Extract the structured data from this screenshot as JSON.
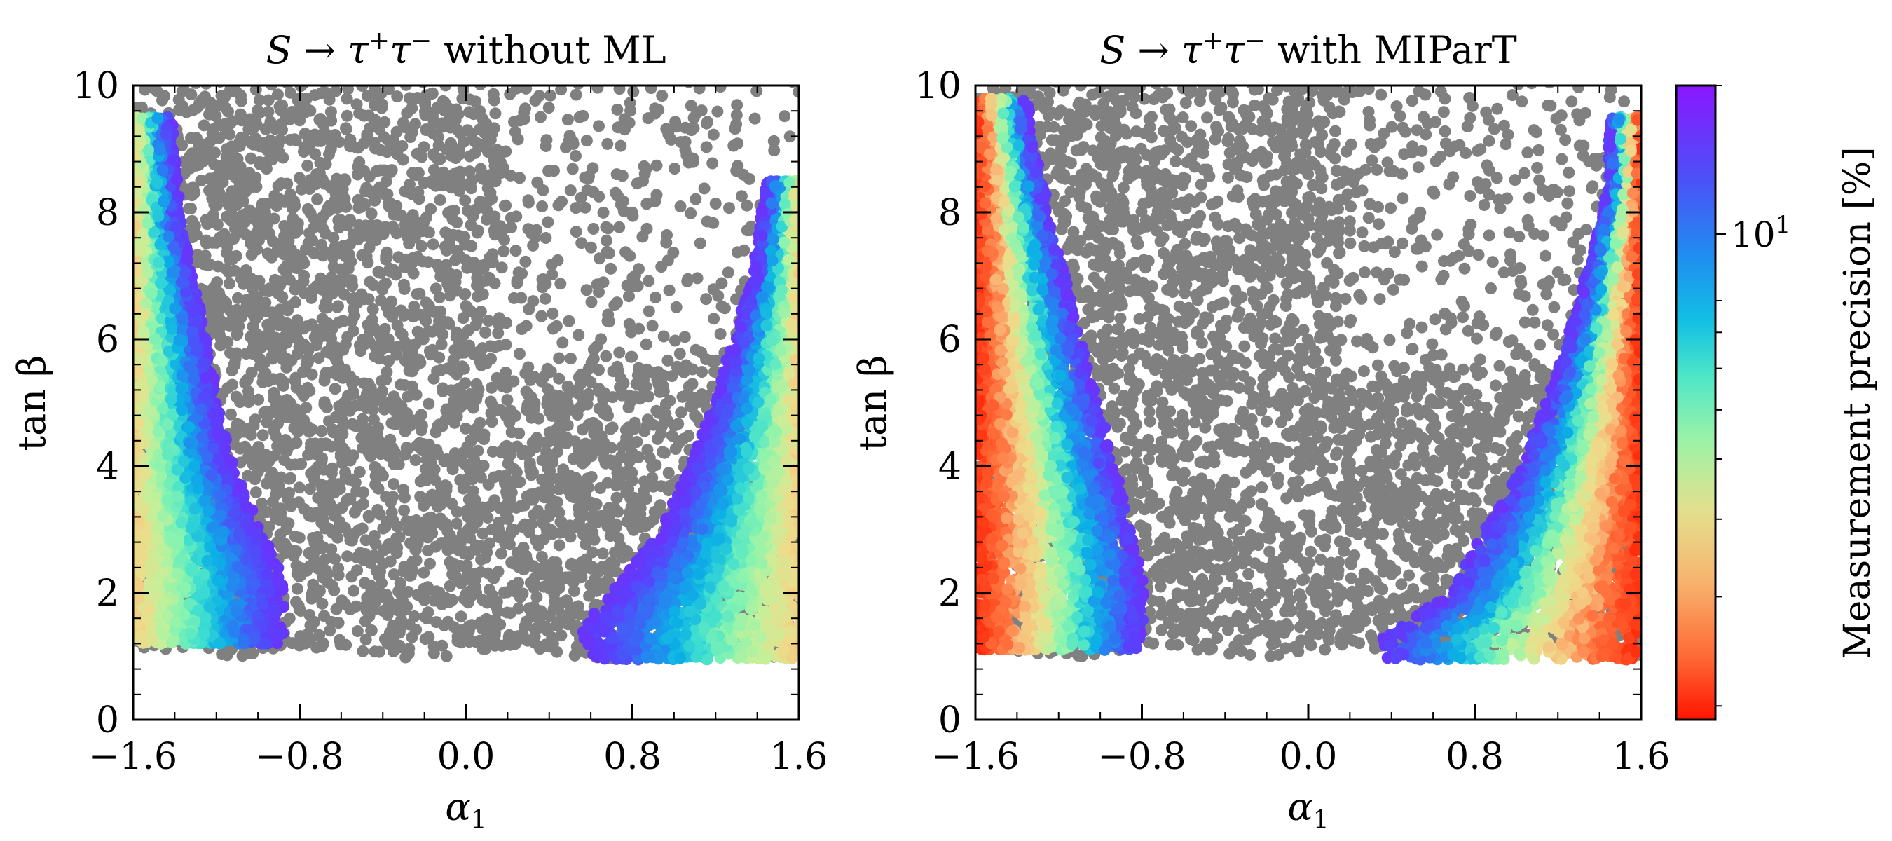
{
  "chart_data": [
    {
      "type": "scatter",
      "title": "S → τ⁺τ⁻ without ML",
      "xlabel": "α₁",
      "ylabel": "tan β",
      "xlim": [
        -1.6,
        1.6
      ],
      "ylim": [
        0,
        10
      ],
      "xticks": [
        "−1.6",
        "−0.8",
        "0.0",
        "0.8",
        "1.6"
      ],
      "yticks": [
        "0",
        "2",
        "4",
        "6",
        "8",
        "10"
      ],
      "series": [
        {
          "name": "excluded points (gray)",
          "color": "#808080",
          "regions": [
            {
              "x_range": [
                -1.6,
                1.6
              ],
              "lower_boundary_y": 1.0,
              "upper_boundary_y": 10.0,
              "density": "dense below tanβ≈6, sparse above for α₁>0.2"
            }
          ]
        },
        {
          "name": "measurable points (colored by precision)",
          "bands": [
            {
              "side": "negative",
              "tanb_range": [
                1.2,
                9.5
              ],
              "left_edge": [
                [
                  1.2,
                  -1.6
                ],
                [
                  10.0,
                  -1.6
                ]
              ],
              "right_edge": [
                [
                  1.4,
                  -0.88
                ],
                [
                  2.2,
                  -0.88
                ],
                [
                  4.2,
                  -1.15
                ],
                [
                  6.0,
                  -1.25
                ],
                [
                  8.0,
                  -1.38
                ],
                [
                  9.5,
                  -1.42
                ]
              ],
              "precision_percent_left_to_right": [
                3.5,
                5,
                7,
                10,
                14,
                17
              ]
            },
            {
              "side": "positive",
              "tanb_range": [
                0.95,
                8.5
              ],
              "left_edge": [
                [
                  1.0,
                  0.6
                ],
                [
                  1.4,
                  0.55
                ],
                [
                  3.0,
                  0.95
                ],
                [
                  5.0,
                  1.2
                ],
                [
                  7.0,
                  1.38
                ],
                [
                  8.5,
                  1.45
                ]
              ],
              "right_edge": [
                [
                  0.95,
                  1.6
                ],
                [
                  8.5,
                  1.6
                ]
              ],
              "precision_percent_left_to_right": [
                17,
                14,
                10,
                7,
                5,
                3.5
              ]
            }
          ]
        }
      ],
      "colorbar": {
        "label": "Measurement precision [%]",
        "scale": "log",
        "range": [
          1.9,
          20
        ],
        "tick_label": "10¹",
        "tick_value": 10,
        "colormap": "rainbow"
      }
    },
    {
      "type": "scatter",
      "title": "S → τ⁺τ⁻ with MIParT",
      "xlabel": "α₁",
      "ylabel": "tan β",
      "xlim": [
        -1.6,
        1.6
      ],
      "ylim": [
        0,
        10
      ],
      "xticks": [
        "−1.6",
        "−0.8",
        "0.0",
        "0.8",
        "1.6"
      ],
      "yticks": [
        "0",
        "2",
        "4",
        "6",
        "8",
        "10"
      ],
      "series": [
        {
          "name": "excluded points (gray)",
          "color": "#808080",
          "regions": [
            {
              "x_range": [
                -1.6,
                1.6
              ],
              "lower_boundary_y": 1.0,
              "upper_boundary_y": 10.0,
              "density": "dense below tanβ≈6, sparse above for α₁>0.2"
            }
          ]
        },
        {
          "name": "measurable points (colored by precision)",
          "bands": [
            {
              "side": "negative",
              "tanb_range": [
                1.1,
                9.8
              ],
              "left_edge": [
                [
                  1.1,
                  -1.6
                ],
                [
                  10.0,
                  -1.6
                ]
              ],
              "right_edge": [
                [
                  1.4,
                  -0.8
                ],
                [
                  2.3,
                  -0.8
                ],
                [
                  4.2,
                  -0.95
                ],
                [
                  6.0,
                  -1.1
                ],
                [
                  8.0,
                  -1.25
                ],
                [
                  9.5,
                  -1.35
                ]
              ],
              "precision_percent_left_to_right": [
                2.0,
                2.5,
                4,
                7,
                12,
                17
              ]
            },
            {
              "side": "positive",
              "tanb_range": [
                0.95,
                9.5
              ],
              "left_edge": [
                [
                  1.3,
                  0.35
                ],
                [
                  1.9,
                  0.65
                ],
                [
                  3.5,
                  0.95
                ],
                [
                  5.0,
                  1.15
                ],
                [
                  6.5,
                  1.3
                ],
                [
                  8.5,
                  1.45
                ]
              ],
              "right_edge": [
                [
                  0.95,
                  1.6
                ],
                [
                  9.5,
                  1.6
                ]
              ],
              "precision_percent_left_to_right": [
                17,
                12,
                7,
                4,
                2.5,
                2.0
              ]
            }
          ]
        }
      ],
      "colorbar": {
        "label": "Measurement precision [%]",
        "scale": "log",
        "range": [
          1.9,
          20
        ],
        "tick_label": "10¹",
        "tick_value": 10,
        "colormap": "rainbow"
      }
    }
  ],
  "panels": [
    {
      "title_main": "S → τ",
      "title_sup1": "+",
      "title_mid": "τ",
      "title_sup2": "−",
      "title_tail": " without ML",
      "xlabel_main": "α",
      "xlabel_sub": "1",
      "ylabel": "tan β"
    },
    {
      "title_main": "S → τ",
      "title_sup1": "+",
      "title_mid": "τ",
      "title_sup2": "−",
      "title_tail": " with MIParT",
      "xlabel_main": "α",
      "xlabel_sub": "1",
      "ylabel": "tan β"
    }
  ],
  "colorbar": {
    "label": "Measurement precision [%]",
    "tick_main": "10",
    "tick_sup": "1"
  },
  "colors": {
    "gray": "#808080",
    "rainbow": [
      "#ff1a00",
      "#ff6e3a",
      "#f9b878",
      "#eedc8a",
      "#c4f09a",
      "#86f4b0",
      "#3fdfd0",
      "#0cb0e6",
      "#2a7cf2",
      "#5b3ffc",
      "#8a1cff"
    ]
  }
}
